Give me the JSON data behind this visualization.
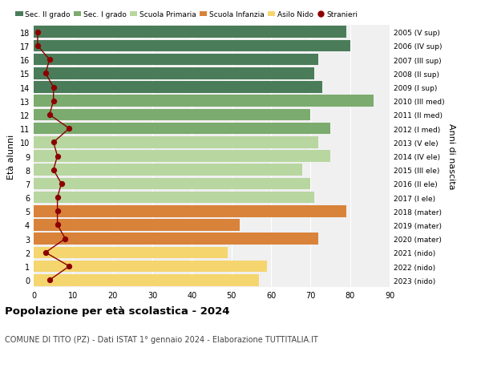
{
  "ages": [
    18,
    17,
    16,
    15,
    14,
    13,
    12,
    11,
    10,
    9,
    8,
    7,
    6,
    5,
    4,
    3,
    2,
    1,
    0
  ],
  "bar_values": [
    79,
    80,
    72,
    71,
    73,
    86,
    70,
    75,
    72,
    75,
    68,
    70,
    71,
    79,
    52,
    72,
    49,
    59,
    57
  ],
  "bar_colors": [
    "#4a7c59",
    "#4a7c59",
    "#4a7c59",
    "#4a7c59",
    "#4a7c59",
    "#7bab6e",
    "#7bab6e",
    "#7bab6e",
    "#b8d6a0",
    "#b8d6a0",
    "#b8d6a0",
    "#b8d6a0",
    "#b8d6a0",
    "#d9823a",
    "#d9823a",
    "#d9823a",
    "#f5d56e",
    "#f5d56e",
    "#f5d56e"
  ],
  "right_labels": [
    "2005 (V sup)",
    "2006 (IV sup)",
    "2007 (III sup)",
    "2008 (II sup)",
    "2009 (I sup)",
    "2010 (III med)",
    "2011 (II med)",
    "2012 (I med)",
    "2013 (V ele)",
    "2014 (IV ele)",
    "2015 (III ele)",
    "2016 (II ele)",
    "2017 (I ele)",
    "2018 (mater)",
    "2019 (mater)",
    "2020 (mater)",
    "2021 (nido)",
    "2022 (nido)",
    "2023 (nido)"
  ],
  "stranieri": [
    1,
    1,
    4,
    3,
    5,
    5,
    4,
    9,
    5,
    6,
    5,
    7,
    6,
    6,
    6,
    8,
    3,
    9,
    4
  ],
  "legend_labels": [
    "Sec. II grado",
    "Sec. I grado",
    "Scuola Primaria",
    "Scuola Infanzia",
    "Asilo Nido",
    "Stranieri"
  ],
  "legend_colors": [
    "#4a7c59",
    "#7bab6e",
    "#b8d6a0",
    "#d9823a",
    "#f5d56e",
    "#8b0000"
  ],
  "ylabel": "Età alunni",
  "right_ylabel": "Anni di nascita",
  "title": "Popolazione per età scolastica - 2024",
  "subtitle": "COMUNE DI TITO (PZ) - Dati ISTAT 1° gennaio 2024 - Elaborazione TUTTITALIA.IT",
  "xlim": [
    0,
    90
  ],
  "xticks": [
    0,
    10,
    20,
    30,
    40,
    50,
    60,
    70,
    80,
    90
  ],
  "background_color": "#ffffff",
  "bar_background": "#f0f0f0"
}
